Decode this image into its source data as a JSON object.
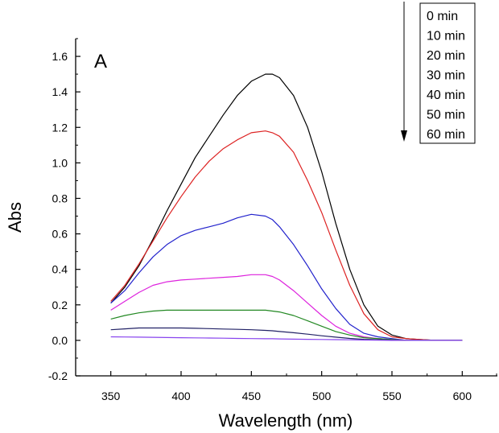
{
  "chart_data": {
    "type": "line",
    "title": "",
    "panel_label": "A",
    "xlabel": "Wavelength (nm)",
    "ylabel": "Abs",
    "xlim": [
      325,
      625
    ],
    "ylim": [
      -0.2,
      1.7
    ],
    "x_ticks": [
      350,
      400,
      450,
      500,
      550,
      600
    ],
    "y_ticks": [
      -0.2,
      0.0,
      0.2,
      0.4,
      0.6,
      0.8,
      1.0,
      1.2,
      1.4,
      1.6
    ],
    "grid": false,
    "legend_position": "top-right",
    "legend_arrow": "down",
    "x": [
      350,
      360,
      370,
      380,
      390,
      400,
      410,
      420,
      430,
      440,
      450,
      460,
      465,
      470,
      480,
      490,
      500,
      510,
      520,
      530,
      540,
      550,
      560,
      570,
      580,
      590,
      600
    ],
    "series": [
      {
        "name": "0 min",
        "color": "#000000",
        "values": [
          0.21,
          0.3,
          0.42,
          0.57,
          0.73,
          0.88,
          1.03,
          1.15,
          1.27,
          1.38,
          1.46,
          1.5,
          1.5,
          1.48,
          1.38,
          1.2,
          0.95,
          0.66,
          0.4,
          0.2,
          0.08,
          0.03,
          0.01,
          0.005,
          0.0,
          0.0,
          0.0
        ]
      },
      {
        "name": "10 min",
        "color": "#dd2222",
        "values": [
          0.22,
          0.31,
          0.43,
          0.56,
          0.69,
          0.81,
          0.92,
          1.01,
          1.08,
          1.13,
          1.17,
          1.18,
          1.17,
          1.15,
          1.06,
          0.9,
          0.72,
          0.51,
          0.31,
          0.15,
          0.06,
          0.02,
          0.01,
          0.005,
          0.0,
          0.0,
          0.0
        ]
      },
      {
        "name": "20 min",
        "color": "#2222cc",
        "values": [
          0.21,
          0.28,
          0.38,
          0.47,
          0.54,
          0.59,
          0.62,
          0.64,
          0.66,
          0.69,
          0.71,
          0.7,
          0.68,
          0.64,
          0.54,
          0.42,
          0.29,
          0.18,
          0.09,
          0.04,
          0.02,
          0.01,
          0.0,
          0.0,
          0.0,
          0.0,
          0.0
        ]
      },
      {
        "name": "30 min",
        "color": "#dd22dd",
        "values": [
          0.17,
          0.22,
          0.27,
          0.31,
          0.33,
          0.34,
          0.345,
          0.35,
          0.355,
          0.36,
          0.37,
          0.37,
          0.36,
          0.34,
          0.28,
          0.21,
          0.14,
          0.08,
          0.04,
          0.02,
          0.01,
          0.005,
          0.0,
          0.0,
          0.0,
          0.0,
          0.0
        ]
      },
      {
        "name": "40 min",
        "color": "#228822",
        "values": [
          0.12,
          0.14,
          0.155,
          0.165,
          0.17,
          0.17,
          0.17,
          0.17,
          0.17,
          0.17,
          0.17,
          0.17,
          0.165,
          0.16,
          0.14,
          0.11,
          0.08,
          0.05,
          0.03,
          0.015,
          0.01,
          0.005,
          0.0,
          0.0,
          0.0,
          0.0,
          0.0
        ]
      },
      {
        "name": "50 min",
        "color": "#222266",
        "values": [
          0.06,
          0.065,
          0.07,
          0.07,
          0.07,
          0.07,
          0.068,
          0.066,
          0.064,
          0.062,
          0.06,
          0.056,
          0.054,
          0.05,
          0.043,
          0.035,
          0.026,
          0.018,
          0.011,
          0.006,
          0.004,
          0.002,
          0.0,
          0.0,
          0.0,
          0.0,
          0.0
        ]
      },
      {
        "name": "60 min",
        "color": "#8844ee",
        "values": [
          0.02,
          0.019,
          0.018,
          0.017,
          0.016,
          0.015,
          0.014,
          0.013,
          0.012,
          0.011,
          0.01,
          0.009,
          0.009,
          0.008,
          0.007,
          0.006,
          0.005,
          0.004,
          0.003,
          0.002,
          0.001,
          0.0,
          0.0,
          0.0,
          0.0,
          0.0,
          0.0
        ]
      }
    ]
  }
}
